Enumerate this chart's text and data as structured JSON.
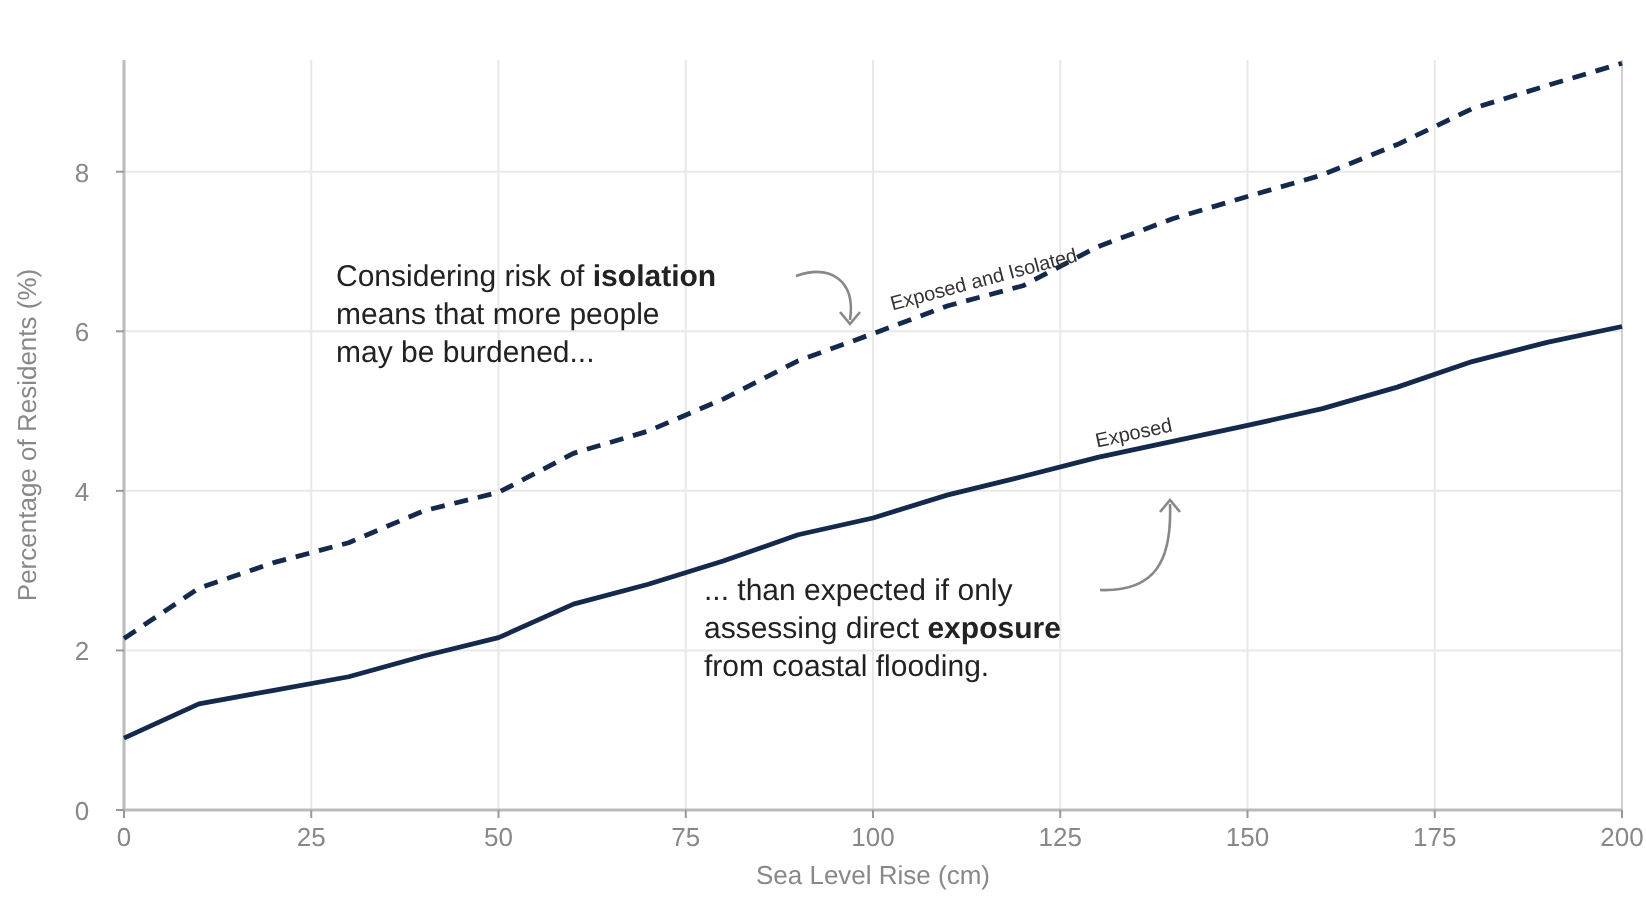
{
  "chart_data": {
    "type": "line",
    "xlabel": "Sea Level Rise (cm)",
    "ylabel": "Percentage of Residents (%)",
    "x": [
      0,
      10,
      20,
      30,
      40,
      50,
      60,
      70,
      80,
      90,
      100,
      110,
      120,
      130,
      140,
      150,
      160,
      170,
      180,
      190,
      200
    ],
    "series": [
      {
        "name": "Exposed and Isolated",
        "color": "#14294b",
        "line_style": "dashed",
        "values": [
          2.15,
          2.78,
          3.1,
          3.35,
          3.75,
          3.98,
          4.47,
          4.75,
          5.15,
          5.63,
          5.97,
          6.32,
          6.57,
          7.06,
          7.41,
          7.69,
          7.96,
          8.34,
          8.79,
          9.08,
          9.36
        ]
      },
      {
        "name": "Exposed",
        "color": "#14294b",
        "line_style": "solid",
        "values": [
          0.9,
          1.33,
          1.5,
          1.67,
          1.93,
          2.16,
          2.58,
          2.83,
          3.12,
          3.45,
          3.66,
          3.95,
          4.18,
          4.42,
          4.62,
          4.82,
          5.03,
          5.3,
          5.62,
          5.86,
          6.06
        ]
      }
    ],
    "xlim": [
      0,
      200
    ],
    "xticks": [
      0,
      25,
      50,
      75,
      100,
      125,
      150,
      175,
      200
    ],
    "ylim": [
      0,
      9.4
    ],
    "yticks": [
      0,
      2,
      4,
      6,
      8
    ],
    "grid": true,
    "annotations": [
      "Considering risk of isolation\nmeans that more people\nmay be burdened...",
      "... than expected if only\nassessing direct exposure\nfrom coastal flooding."
    ]
  }
}
